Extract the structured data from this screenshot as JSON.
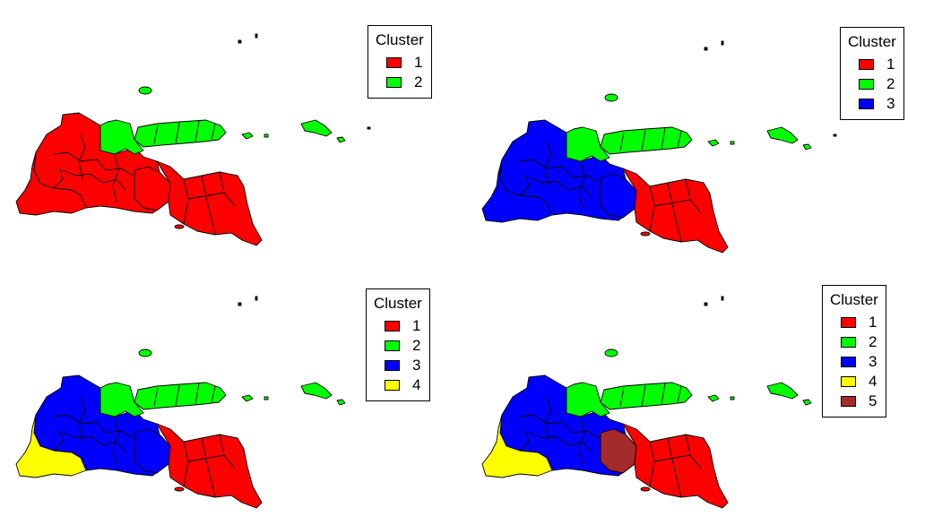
{
  "colors": {
    "red": "#ff0000",
    "green": "#00ff00",
    "blue": "#0000ff",
    "yellow": "#ffff00",
    "brown": "#a52a2a",
    "outline": "#000000"
  },
  "panels": [
    {
      "legend": {
        "title": "Cluster",
        "items": [
          {
            "label": "1",
            "color": "#ff0000"
          },
          {
            "label": "2",
            "color": "#00ff00"
          }
        ]
      },
      "regions": {
        "north": "#00ff00",
        "islands": "#00ff00",
        "west": "#ff0000",
        "southwest": "#ff0000",
        "central": "#ff0000",
        "east": "#ff0000"
      }
    },
    {
      "legend": {
        "title": "Cluster",
        "items": [
          {
            "label": "1",
            "color": "#ff0000"
          },
          {
            "label": "2",
            "color": "#00ff00"
          },
          {
            "label": "3",
            "color": "#0000ff"
          }
        ]
      },
      "regions": {
        "north": "#00ff00",
        "islands": "#00ff00",
        "west": "#0000ff",
        "southwest": "#0000ff",
        "central": "#0000ff",
        "east": "#ff0000"
      }
    },
    {
      "legend": {
        "title": "Cluster",
        "items": [
          {
            "label": "1",
            "color": "#ff0000"
          },
          {
            "label": "2",
            "color": "#00ff00"
          },
          {
            "label": "3",
            "color": "#0000ff"
          },
          {
            "label": "4",
            "color": "#ffff00"
          }
        ]
      },
      "regions": {
        "north": "#00ff00",
        "islands": "#00ff00",
        "west": "#0000ff",
        "southwest": "#ffff00",
        "central": "#0000ff",
        "east": "#ff0000"
      }
    },
    {
      "legend": {
        "title": "Cluster",
        "items": [
          {
            "label": "1",
            "color": "#ff0000"
          },
          {
            "label": "2",
            "color": "#00ff00"
          },
          {
            "label": "3",
            "color": "#0000ff"
          },
          {
            "label": "4",
            "color": "#ffff00"
          },
          {
            "label": "5",
            "color": "#a52a2a"
          }
        ]
      },
      "regions": {
        "north": "#00ff00",
        "islands": "#00ff00",
        "west": "#0000ff",
        "southwest": "#ffff00",
        "central": "#a52a2a",
        "east": "#ff0000"
      }
    }
  ]
}
